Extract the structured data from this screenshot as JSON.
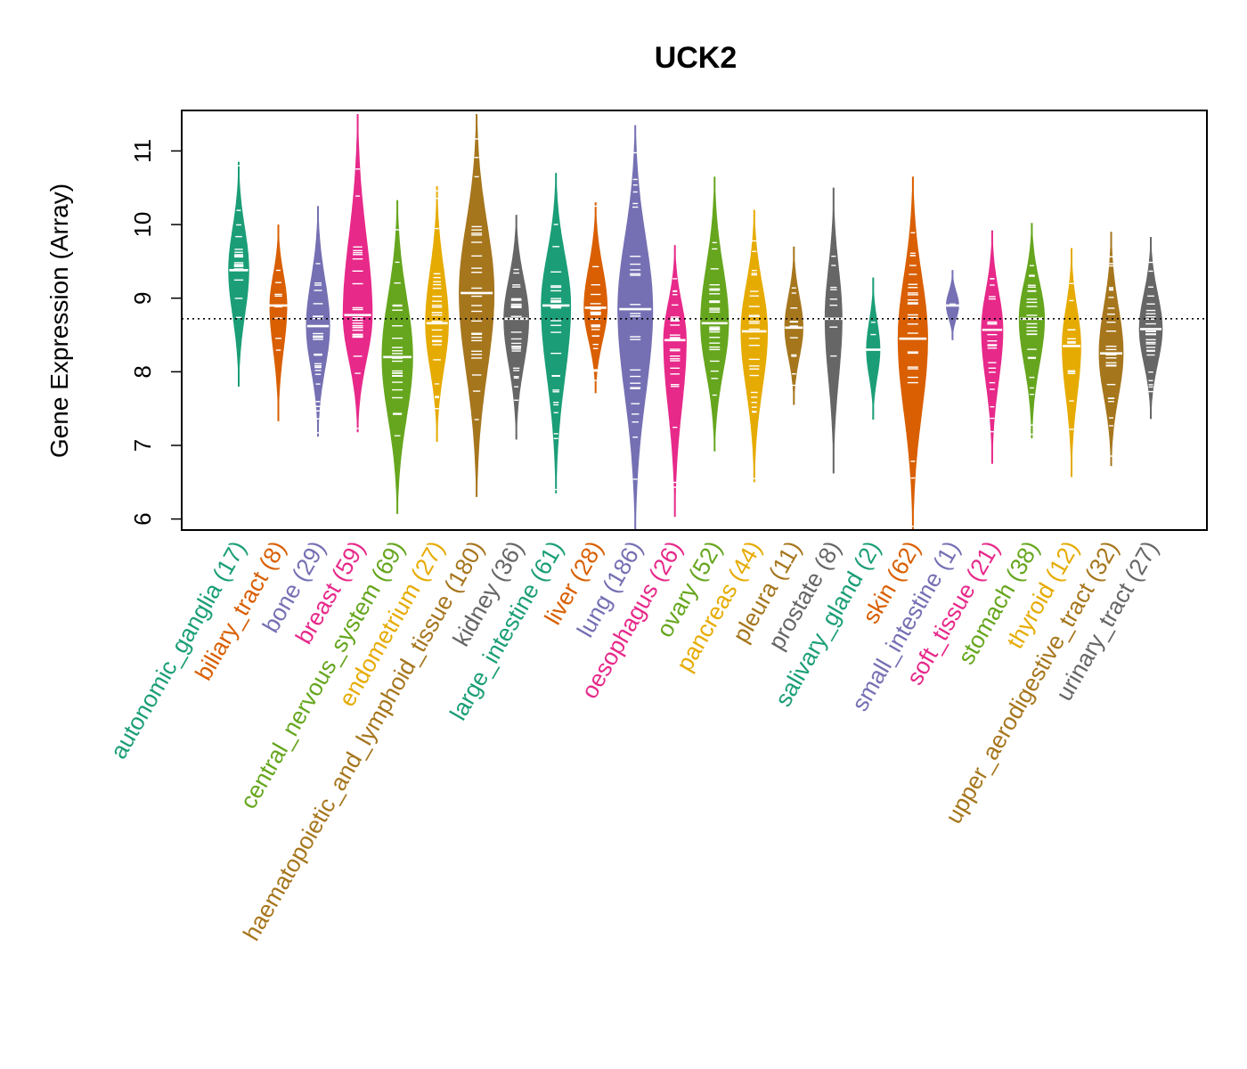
{
  "chart_data": {
    "type": "violin",
    "title": "UCK2",
    "xlabel": "",
    "ylabel": "Gene Expression (Array)",
    "ylim": [
      5.85,
      11.55
    ],
    "yticks": [
      6,
      7,
      8,
      9,
      10,
      11
    ],
    "reference_line": 8.72,
    "categories": [
      {
        "name": "autonomic_ganglia",
        "n": 17,
        "label": "autonomic_ganglia (17)",
        "color": "#1B9E77",
        "min": 7.8,
        "max": 10.85,
        "median": 9.38
      },
      {
        "name": "biliary_tract",
        "n": 8,
        "label": "biliary_tract (8)",
        "color": "#D95F02",
        "min": 7.33,
        "max": 10.0,
        "median": 8.9
      },
      {
        "name": "bone",
        "n": 29,
        "label": "bone (29)",
        "color": "#7570B3",
        "min": 7.12,
        "max": 10.25,
        "median": 8.62
      },
      {
        "name": "breast",
        "n": 59,
        "label": "breast (59)",
        "color": "#E7298A",
        "min": 7.18,
        "max": 11.5,
        "median": 8.77
      },
      {
        "name": "central_nervous_system",
        "n": 69,
        "label": "central_nervous_system (69)",
        "color": "#66A61E",
        "min": 6.07,
        "max": 10.33,
        "median": 8.2
      },
      {
        "name": "endometrium",
        "n": 27,
        "label": "endometrium (27)",
        "color": "#E6AB02",
        "min": 7.05,
        "max": 10.52,
        "median": 8.66
      },
      {
        "name": "haematopoietic_and_lymphoid_tissue",
        "n": 180,
        "label": "haematopoietic_and_lymphoid_tissue (180)",
        "color": "#A6761D",
        "min": 6.3,
        "max": 11.5,
        "median": 9.07
      },
      {
        "name": "kidney",
        "n": 36,
        "label": "kidney (36)",
        "color": "#666666",
        "min": 7.08,
        "max": 10.13,
        "median": 8.72
      },
      {
        "name": "large_intestine",
        "n": 61,
        "label": "large_intestine (61)",
        "color": "#1B9E77",
        "min": 6.35,
        "max": 10.7,
        "median": 8.9
      },
      {
        "name": "liver",
        "n": 28,
        "label": "liver (28)",
        "color": "#D95F02",
        "min": 7.71,
        "max": 10.3,
        "median": 8.87
      },
      {
        "name": "lung",
        "n": 186,
        "label": "lung (186)",
        "color": "#7570B3",
        "min": 5.85,
        "max": 11.35,
        "median": 8.85
      },
      {
        "name": "oesophagus",
        "n": 26,
        "label": "oesophagus (26)",
        "color": "#E7298A",
        "min": 6.03,
        "max": 9.72,
        "median": 8.43
      },
      {
        "name": "ovary",
        "n": 52,
        "label": "ovary (52)",
        "color": "#66A61E",
        "min": 6.92,
        "max": 10.65,
        "median": 8.66
      },
      {
        "name": "pancreas",
        "n": 44,
        "label": "pancreas (44)",
        "color": "#E6AB02",
        "min": 6.5,
        "max": 10.2,
        "median": 8.55
      },
      {
        "name": "pleura",
        "n": 11,
        "label": "pleura (11)",
        "color": "#A6761D",
        "min": 7.55,
        "max": 9.7,
        "median": 8.6
      },
      {
        "name": "prostate",
        "n": 8,
        "label": "prostate (8)",
        "color": "#666666",
        "min": 6.62,
        "max": 10.5,
        "median": 8.72
      },
      {
        "name": "salivary_gland",
        "n": 2,
        "label": "salivary_gland (2)",
        "color": "#1B9E77",
        "min": 7.35,
        "max": 9.28,
        "median": 8.3
      },
      {
        "name": "skin",
        "n": 62,
        "label": "skin (62)",
        "color": "#D95F02",
        "min": 5.85,
        "max": 10.65,
        "median": 8.45
      },
      {
        "name": "small_intestine",
        "n": 1,
        "label": "small_intestine (1)",
        "color": "#7570B3",
        "min": 8.43,
        "max": 9.38,
        "median": 8.9
      },
      {
        "name": "soft_tissue",
        "n": 21,
        "label": "soft_tissue (21)",
        "color": "#E7298A",
        "min": 6.75,
        "max": 9.92,
        "median": 8.57
      },
      {
        "name": "stomach",
        "n": 38,
        "label": "stomach (38)",
        "color": "#66A61E",
        "min": 7.1,
        "max": 10.02,
        "median": 8.72
      },
      {
        "name": "thyroid",
        "n": 12,
        "label": "thyroid (12)",
        "color": "#E6AB02",
        "min": 6.57,
        "max": 9.68,
        "median": 8.35
      },
      {
        "name": "upper_aerodigestive_tract",
        "n": 32,
        "label": "upper_aerodigestive_tract (32)",
        "color": "#A6761D",
        "min": 6.72,
        "max": 9.9,
        "median": 8.25
      },
      {
        "name": "urinary_tract",
        "n": 27,
        "label": "urinary_tract (27)",
        "color": "#666666",
        "min": 7.36,
        "max": 9.83,
        "median": 8.58
      }
    ]
  }
}
